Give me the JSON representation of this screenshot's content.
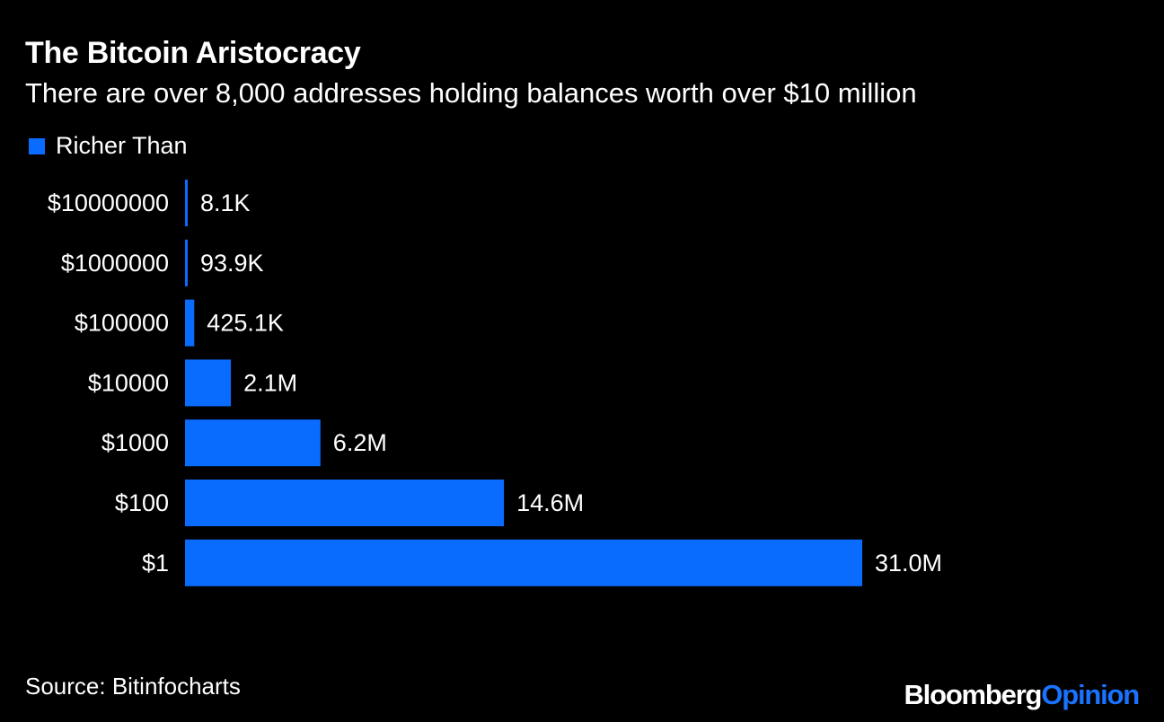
{
  "colors": {
    "background": "#000000",
    "text": "#ffffff",
    "bar": "#0a6cff",
    "brand_accent": "#1a73ff"
  },
  "chart_data": {
    "type": "bar",
    "orientation": "horizontal",
    "title": "The Bitcoin Aristocracy",
    "subtitle": "There are over 8,000 addresses holding balances worth over $10 million",
    "categories": [
      "$10000000",
      "$1000000",
      "$100000",
      "$10000",
      "$1000",
      "$100",
      "$1"
    ],
    "series": [
      {
        "name": "Richer Than",
        "values": [
          8100,
          93900,
          425100,
          2100000,
          6200000,
          14600000,
          31000000
        ],
        "labels": [
          "8.1K",
          "93.9K",
          "425.1K",
          "2.1M",
          "6.2M",
          "14.6M",
          "31.0M"
        ]
      }
    ],
    "xlim": [
      0,
      31000000
    ],
    "grid": false,
    "legend_position": "top-left",
    "source": "Source: Bitinfocharts"
  },
  "brand": {
    "part1": "Bloomberg",
    "part2": "Opinion"
  }
}
